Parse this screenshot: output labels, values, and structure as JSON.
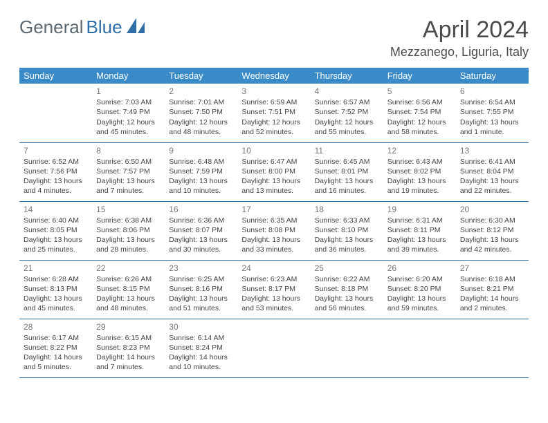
{
  "brand": {
    "part1": "General",
    "part2": "Blue"
  },
  "title": "April 2024",
  "location": "Mezzanego, Liguria, Italy",
  "colors": {
    "header_bg": "#3b8bc9",
    "header_text": "#ffffff",
    "rule": "#2f6fa8",
    "daynum": "#777777",
    "body_text": "#444444",
    "logo_gray": "#5b6770",
    "logo_blue": "#2f6fa8",
    "page_bg": "#ffffff"
  },
  "typography": {
    "title_fontsize": 34,
    "location_fontsize": 18,
    "weekday_fontsize": 13,
    "cell_fontsize": 10.5,
    "daynum_fontsize": 12
  },
  "weekdays": [
    "Sunday",
    "Monday",
    "Tuesday",
    "Wednesday",
    "Thursday",
    "Friday",
    "Saturday"
  ],
  "weeks": [
    [
      null,
      {
        "n": "1",
        "sr": "Sunrise: 7:03 AM",
        "ss": "Sunset: 7:49 PM",
        "dl1": "Daylight: 12 hours",
        "dl2": "and 45 minutes."
      },
      {
        "n": "2",
        "sr": "Sunrise: 7:01 AM",
        "ss": "Sunset: 7:50 PM",
        "dl1": "Daylight: 12 hours",
        "dl2": "and 48 minutes."
      },
      {
        "n": "3",
        "sr": "Sunrise: 6:59 AM",
        "ss": "Sunset: 7:51 PM",
        "dl1": "Daylight: 12 hours",
        "dl2": "and 52 minutes."
      },
      {
        "n": "4",
        "sr": "Sunrise: 6:57 AM",
        "ss": "Sunset: 7:52 PM",
        "dl1": "Daylight: 12 hours",
        "dl2": "and 55 minutes."
      },
      {
        "n": "5",
        "sr": "Sunrise: 6:56 AM",
        "ss": "Sunset: 7:54 PM",
        "dl1": "Daylight: 12 hours",
        "dl2": "and 58 minutes."
      },
      {
        "n": "6",
        "sr": "Sunrise: 6:54 AM",
        "ss": "Sunset: 7:55 PM",
        "dl1": "Daylight: 13 hours",
        "dl2": "and 1 minute."
      }
    ],
    [
      {
        "n": "7",
        "sr": "Sunrise: 6:52 AM",
        "ss": "Sunset: 7:56 PM",
        "dl1": "Daylight: 13 hours",
        "dl2": "and 4 minutes."
      },
      {
        "n": "8",
        "sr": "Sunrise: 6:50 AM",
        "ss": "Sunset: 7:57 PM",
        "dl1": "Daylight: 13 hours",
        "dl2": "and 7 minutes."
      },
      {
        "n": "9",
        "sr": "Sunrise: 6:48 AM",
        "ss": "Sunset: 7:59 PM",
        "dl1": "Daylight: 13 hours",
        "dl2": "and 10 minutes."
      },
      {
        "n": "10",
        "sr": "Sunrise: 6:47 AM",
        "ss": "Sunset: 8:00 PM",
        "dl1": "Daylight: 13 hours",
        "dl2": "and 13 minutes."
      },
      {
        "n": "11",
        "sr": "Sunrise: 6:45 AM",
        "ss": "Sunset: 8:01 PM",
        "dl1": "Daylight: 13 hours",
        "dl2": "and 16 minutes."
      },
      {
        "n": "12",
        "sr": "Sunrise: 6:43 AM",
        "ss": "Sunset: 8:02 PM",
        "dl1": "Daylight: 13 hours",
        "dl2": "and 19 minutes."
      },
      {
        "n": "13",
        "sr": "Sunrise: 6:41 AM",
        "ss": "Sunset: 8:04 PM",
        "dl1": "Daylight: 13 hours",
        "dl2": "and 22 minutes."
      }
    ],
    [
      {
        "n": "14",
        "sr": "Sunrise: 6:40 AM",
        "ss": "Sunset: 8:05 PM",
        "dl1": "Daylight: 13 hours",
        "dl2": "and 25 minutes."
      },
      {
        "n": "15",
        "sr": "Sunrise: 6:38 AM",
        "ss": "Sunset: 8:06 PM",
        "dl1": "Daylight: 13 hours",
        "dl2": "and 28 minutes."
      },
      {
        "n": "16",
        "sr": "Sunrise: 6:36 AM",
        "ss": "Sunset: 8:07 PM",
        "dl1": "Daylight: 13 hours",
        "dl2": "and 30 minutes."
      },
      {
        "n": "17",
        "sr": "Sunrise: 6:35 AM",
        "ss": "Sunset: 8:08 PM",
        "dl1": "Daylight: 13 hours",
        "dl2": "and 33 minutes."
      },
      {
        "n": "18",
        "sr": "Sunrise: 6:33 AM",
        "ss": "Sunset: 8:10 PM",
        "dl1": "Daylight: 13 hours",
        "dl2": "and 36 minutes."
      },
      {
        "n": "19",
        "sr": "Sunrise: 6:31 AM",
        "ss": "Sunset: 8:11 PM",
        "dl1": "Daylight: 13 hours",
        "dl2": "and 39 minutes."
      },
      {
        "n": "20",
        "sr": "Sunrise: 6:30 AM",
        "ss": "Sunset: 8:12 PM",
        "dl1": "Daylight: 13 hours",
        "dl2": "and 42 minutes."
      }
    ],
    [
      {
        "n": "21",
        "sr": "Sunrise: 6:28 AM",
        "ss": "Sunset: 8:13 PM",
        "dl1": "Daylight: 13 hours",
        "dl2": "and 45 minutes."
      },
      {
        "n": "22",
        "sr": "Sunrise: 6:26 AM",
        "ss": "Sunset: 8:15 PM",
        "dl1": "Daylight: 13 hours",
        "dl2": "and 48 minutes."
      },
      {
        "n": "23",
        "sr": "Sunrise: 6:25 AM",
        "ss": "Sunset: 8:16 PM",
        "dl1": "Daylight: 13 hours",
        "dl2": "and 51 minutes."
      },
      {
        "n": "24",
        "sr": "Sunrise: 6:23 AM",
        "ss": "Sunset: 8:17 PM",
        "dl1": "Daylight: 13 hours",
        "dl2": "and 53 minutes."
      },
      {
        "n": "25",
        "sr": "Sunrise: 6:22 AM",
        "ss": "Sunset: 8:18 PM",
        "dl1": "Daylight: 13 hours",
        "dl2": "and 56 minutes."
      },
      {
        "n": "26",
        "sr": "Sunrise: 6:20 AM",
        "ss": "Sunset: 8:20 PM",
        "dl1": "Daylight: 13 hours",
        "dl2": "and 59 minutes."
      },
      {
        "n": "27",
        "sr": "Sunrise: 6:18 AM",
        "ss": "Sunset: 8:21 PM",
        "dl1": "Daylight: 14 hours",
        "dl2": "and 2 minutes."
      }
    ],
    [
      {
        "n": "28",
        "sr": "Sunrise: 6:17 AM",
        "ss": "Sunset: 8:22 PM",
        "dl1": "Daylight: 14 hours",
        "dl2": "and 5 minutes."
      },
      {
        "n": "29",
        "sr": "Sunrise: 6:15 AM",
        "ss": "Sunset: 8:23 PM",
        "dl1": "Daylight: 14 hours",
        "dl2": "and 7 minutes."
      },
      {
        "n": "30",
        "sr": "Sunrise: 6:14 AM",
        "ss": "Sunset: 8:24 PM",
        "dl1": "Daylight: 14 hours",
        "dl2": "and 10 minutes."
      },
      null,
      null,
      null,
      null
    ]
  ]
}
